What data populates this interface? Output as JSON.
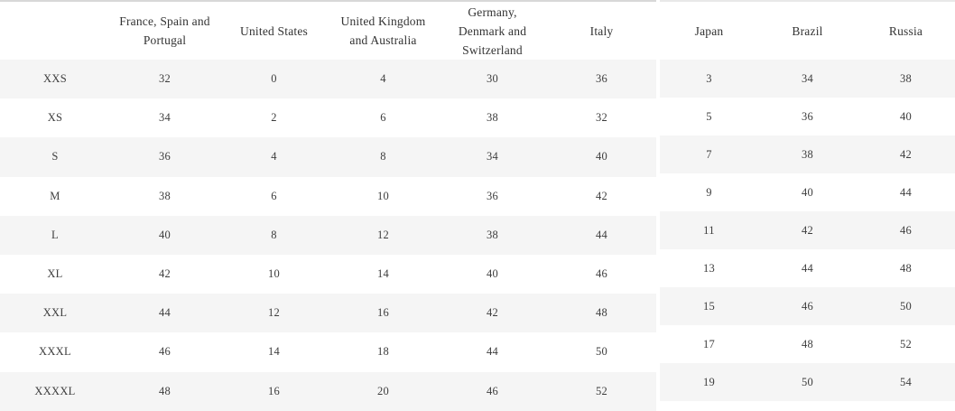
{
  "page": {
    "description": "Clothing size conversion table",
    "stripe_color": "#f5f5f5",
    "text_color": "#3b3b3b"
  },
  "left_table": {
    "columns": [
      "",
      "France, Spain and Portugal",
      "United States",
      "United Kingdom and Australia",
      "Germany, Denmark and Switzerland",
      "Italy"
    ],
    "rows": [
      {
        "label": "XXS",
        "values": [
          32,
          0,
          4,
          30,
          36
        ]
      },
      {
        "label": "XS",
        "values": [
          34,
          2,
          6,
          38,
          32
        ]
      },
      {
        "label": "S",
        "values": [
          36,
          4,
          8,
          34,
          40
        ]
      },
      {
        "label": "M",
        "values": [
          38,
          6,
          10,
          36,
          42
        ]
      },
      {
        "label": "L",
        "values": [
          40,
          8,
          12,
          38,
          44
        ]
      },
      {
        "label": "XL",
        "values": [
          42,
          10,
          14,
          40,
          46
        ]
      },
      {
        "label": "XXL",
        "values": [
          44,
          12,
          16,
          42,
          48
        ]
      },
      {
        "label": "XXXL",
        "values": [
          46,
          14,
          18,
          44,
          50
        ]
      },
      {
        "label": "XXXXL",
        "values": [
          48,
          16,
          20,
          46,
          52
        ]
      }
    ]
  },
  "right_table": {
    "columns": [
      "Japan",
      "Brazil",
      "Russia"
    ],
    "rows": [
      [
        3,
        34,
        38
      ],
      [
        5,
        36,
        40
      ],
      [
        7,
        38,
        42
      ],
      [
        9,
        40,
        44
      ],
      [
        11,
        42,
        46
      ],
      [
        13,
        44,
        48
      ],
      [
        15,
        46,
        50
      ],
      [
        17,
        48,
        52
      ],
      [
        19,
        50,
        54
      ]
    ]
  }
}
